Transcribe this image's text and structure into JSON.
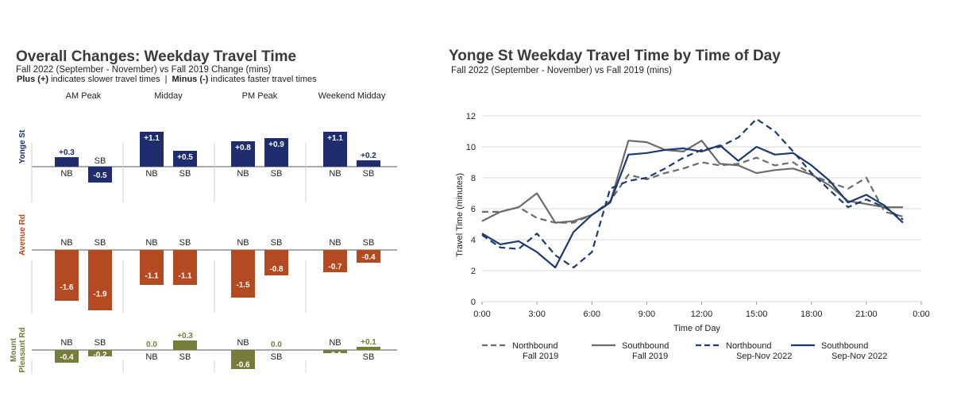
{
  "left": {
    "title": "Overall Changes: Weekday Travel Time",
    "subtitle": "Fall 2022 (September - November) vs Fall 2019 Change (mins)",
    "note_plus_bold": "Plus (+)",
    "note_plus_text": " indicates slower travel times",
    "note_sep": "|",
    "note_minus_bold": "Minus (-)",
    "note_minus_text": " indicates faster travel times"
  },
  "chart_data": [
    {
      "type": "bar",
      "title": "Overall Changes: Weekday Travel Time",
      "subtitle": "Fall 2022 (September - November) vs Fall 2019 Change (mins)",
      "periods": [
        "AM Peak",
        "Midday",
        "PM Peak",
        "Weekend Midday"
      ],
      "directions": [
        "NB",
        "SB"
      ],
      "rows": [
        {
          "name": "Yonge St",
          "color": "#1f2c6e",
          "values": [
            [
              0.3,
              -0.5
            ],
            [
              1.1,
              0.5
            ],
            [
              0.8,
              0.9
            ],
            [
              1.1,
              0.2
            ]
          ],
          "labels": [
            [
              "+0.3",
              "-0.5"
            ],
            [
              "+1.1",
              "+0.5"
            ],
            [
              "+0.8",
              "+0.9"
            ],
            [
              "+1.1",
              "+0.2"
            ]
          ]
        },
        {
          "name": "Avenue Rd",
          "color": "#b34a22",
          "values": [
            [
              -1.6,
              -1.9
            ],
            [
              -1.1,
              -1.1
            ],
            [
              -1.5,
              -0.8
            ],
            [
              -0.7,
              -0.4
            ]
          ],
          "labels": [
            [
              "-1.6",
              "-1.9"
            ],
            [
              "-1.1",
              "-1.1"
            ],
            [
              "-1.5",
              "-0.8"
            ],
            [
              "-0.7",
              "-0.4"
            ]
          ]
        },
        {
          "name": "Mount Pleasant Rd",
          "name_lines": [
            "Mount",
            "Pleasant Rd"
          ],
          "color": "#767d3b",
          "values": [
            [
              -0.4,
              -0.2
            ],
            [
              0.0,
              0.3
            ],
            [
              -0.6,
              0.0
            ],
            [
              -0.1,
              0.1
            ]
          ],
          "labels": [
            [
              "-0.4",
              "-0.2"
            ],
            [
              "0.0",
              "+0.3"
            ],
            [
              "-0.6",
              "0.0"
            ],
            [
              "-0.1",
              "+0.1"
            ]
          ]
        }
      ]
    },
    {
      "type": "line",
      "title": "Yonge St Weekday Travel Time by Time of Day",
      "subtitle": "Fall 2022 (September - November) vs Fall 2019 (mins)",
      "xlabel": "Time of Day",
      "ylabel": "Travel Time (minutes)",
      "xlim": [
        0,
        24
      ],
      "ylim": [
        0,
        12
      ],
      "xticks": [
        0,
        3,
        6,
        9,
        12,
        15,
        18,
        21,
        24
      ],
      "xtick_labels": [
        "0:00",
        "3:00",
        "6:00",
        "9:00",
        "12:00",
        "15:00",
        "18:00",
        "21:00",
        "0:00"
      ],
      "yticks": [
        0,
        2,
        4,
        6,
        8,
        10,
        12
      ],
      "ytick_labels": [
        "0",
        "2",
        "4",
        "6",
        "8",
        "10",
        "12"
      ],
      "x": [
        0,
        1,
        2,
        3,
        4,
        5,
        6,
        7,
        8,
        9,
        10,
        11,
        12,
        13,
        14,
        15,
        16,
        17,
        18,
        19,
        20,
        21,
        22,
        23
      ],
      "series": [
        {
          "name": "Northbound Fall 2019",
          "legend_lines": [
            "Northbound",
            "Fall 2019"
          ],
          "color": "#6b6b6b",
          "dash": "8,5",
          "values": [
            5.8,
            5.8,
            6.1,
            5.4,
            5.1,
            5.1,
            5.6,
            6.5,
            8.2,
            7.9,
            8.3,
            8.6,
            9.0,
            8.8,
            8.9,
            9.3,
            8.8,
            9.0,
            8.2,
            7.7,
            7.3,
            8.0,
            5.8,
            5.5
          ]
        },
        {
          "name": "Southbound Fall 2019",
          "legend_lines": [
            "Southbound",
            "Fall 2019"
          ],
          "color": "#6b6b6b",
          "dash": "",
          "values": [
            5.2,
            5.8,
            6.1,
            7.0,
            5.1,
            5.2,
            5.6,
            6.4,
            10.4,
            10.3,
            9.8,
            9.7,
            10.4,
            8.9,
            8.8,
            8.3,
            8.5,
            8.6,
            8.2,
            7.5,
            6.5,
            6.3,
            6.1,
            6.1
          ]
        },
        {
          "name": "Northbound Sep-Nov 2022",
          "legend_lines": [
            "Northbound",
            "Sep-Nov 2022"
          ],
          "color": "#1f3a6e",
          "dash": "8,5",
          "values": [
            4.3,
            3.5,
            3.4,
            4.4,
            3.0,
            2.2,
            3.2,
            7.3,
            7.8,
            8.0,
            8.6,
            9.3,
            9.8,
            10.0,
            10.6,
            11.8,
            11.0,
            9.7,
            8.3,
            7.2,
            6.1,
            6.6,
            6.1,
            5.3
          ]
        },
        {
          "name": "Southbound Sep-Nov 2022",
          "legend_lines": [
            "Southbound",
            "Sep-Nov 2022"
          ],
          "color": "#1f3a6e",
          "dash": "",
          "values": [
            4.4,
            3.7,
            3.9,
            3.2,
            2.2,
            4.5,
            5.6,
            6.4,
            9.5,
            9.6,
            9.8,
            9.9,
            9.7,
            10.1,
            9.1,
            10.0,
            9.5,
            9.6,
            8.8,
            7.8,
            6.4,
            6.9,
            6.2,
            5.1
          ]
        }
      ]
    }
  ]
}
